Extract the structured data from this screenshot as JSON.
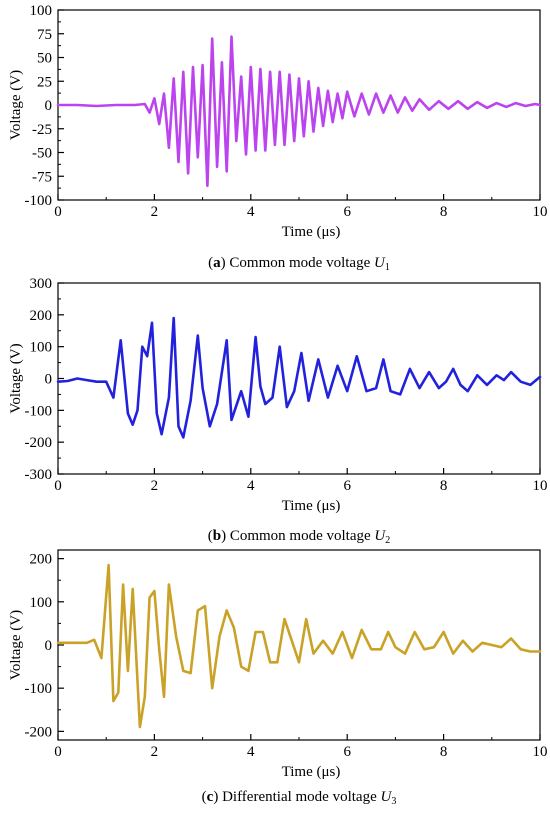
{
  "chart_data": [
    {
      "type": "line",
      "caption": {
        "label": "a",
        "text": " Common mode voltage ",
        "var": "U",
        "sub": "1"
      },
      "xlabel": "Time (μs)",
      "ylabel": "Voltage (V)",
      "xlim": [
        0,
        10
      ],
      "ylim": [
        -100,
        100
      ],
      "xticks": [
        "0",
        "2",
        "4",
        "6",
        "8",
        "10"
      ],
      "yticks": [
        "100",
        "75",
        "50",
        "25",
        "0",
        "-25",
        "-50",
        "-75",
        "-100"
      ],
      "colors": {
        "line": "#bb44ee",
        "accent": "#ee22cc"
      },
      "series": [
        {
          "x": [
            0,
            0.4,
            0.8,
            1.2,
            1.6,
            1.8,
            1.9,
            2.0,
            2.1,
            2.2,
            2.3,
            2.4,
            2.5,
            2.6,
            2.7,
            2.8,
            2.9,
            3.0,
            3.1,
            3.2,
            3.3,
            3.4,
            3.5,
            3.6,
            3.7,
            3.8,
            3.9,
            4.0,
            4.1,
            4.2,
            4.3,
            4.4,
            4.5,
            4.6,
            4.7,
            4.8,
            4.9,
            5.0,
            5.1,
            5.2,
            5.3,
            5.4,
            5.5,
            5.6,
            5.7,
            5.8,
            5.9,
            6.0,
            6.15,
            6.3,
            6.45,
            6.6,
            6.75,
            6.9,
            7.05,
            7.2,
            7.35,
            7.5,
            7.7,
            7.9,
            8.1,
            8.3,
            8.5,
            8.7,
            8.9,
            9.1,
            9.3,
            9.5,
            9.7,
            9.9,
            10.0
          ],
          "y": [
            0,
            0,
            -1,
            0,
            0,
            1,
            -8,
            7,
            -20,
            12,
            -45,
            28,
            -60,
            35,
            -72,
            40,
            -55,
            42,
            -85,
            70,
            -65,
            45,
            -70,
            72,
            -38,
            30,
            -52,
            40,
            -48,
            38,
            -48,
            35,
            -42,
            35,
            -42,
            32,
            -38,
            28,
            -33,
            25,
            -28,
            18,
            -22,
            15,
            -18,
            12,
            -14,
            14,
            -12,
            12,
            -10,
            12,
            -8,
            10,
            -8,
            8,
            -6,
            6,
            -5,
            4,
            -4,
            4,
            -4,
            3,
            -3,
            2,
            -2,
            2,
            -1,
            1,
            0
          ]
        }
      ]
    },
    {
      "type": "line",
      "caption": {
        "label": "b",
        "text": " Common mode voltage ",
        "var": "U",
        "sub": "2"
      },
      "xlabel": "Time (μs)",
      "ylabel": "Voltage (V)",
      "xlim": [
        0,
        10
      ],
      "ylim": [
        -300,
        300
      ],
      "xticks": [
        "0",
        "2",
        "4",
        "6",
        "8",
        "10"
      ],
      "yticks": [
        "300",
        "200",
        "100",
        "0",
        "-100",
        "-200",
        "-300"
      ],
      "colors": {
        "line": "#2222dd"
      },
      "series": [
        {
          "x": [
            0,
            0.2,
            0.4,
            0.6,
            0.8,
            1.0,
            1.15,
            1.3,
            1.45,
            1.55,
            1.65,
            1.75,
            1.85,
            1.95,
            2.05,
            2.15,
            2.3,
            2.4,
            2.5,
            2.6,
            2.75,
            2.9,
            3.0,
            3.15,
            3.3,
            3.5,
            3.6,
            3.8,
            3.95,
            4.1,
            4.2,
            4.3,
            4.45,
            4.6,
            4.75,
            4.9,
            5.05,
            5.2,
            5.4,
            5.6,
            5.8,
            6.0,
            6.2,
            6.4,
            6.6,
            6.75,
            6.9,
            7.1,
            7.3,
            7.5,
            7.7,
            7.9,
            8.05,
            8.2,
            8.35,
            8.5,
            8.7,
            8.9,
            9.1,
            9.25,
            9.4,
            9.6,
            9.8,
            10.0
          ],
          "y": [
            -10,
            -8,
            0,
            -5,
            -10,
            -10,
            -60,
            120,
            -110,
            -145,
            -100,
            100,
            70,
            175,
            -110,
            -175,
            -60,
            190,
            -150,
            -185,
            -70,
            135,
            -30,
            -150,
            -80,
            120,
            -130,
            -40,
            -120,
            130,
            -25,
            -80,
            -60,
            100,
            -90,
            -40,
            80,
            -70,
            60,
            -60,
            40,
            -40,
            70,
            -40,
            -30,
            60,
            -40,
            -50,
            30,
            -30,
            20,
            -30,
            -10,
            30,
            -20,
            -40,
            10,
            -20,
            10,
            -5,
            20,
            -10,
            -20,
            5
          ]
        }
      ]
    },
    {
      "type": "line",
      "caption": {
        "label": "c",
        "text": " Differential mode voltage ",
        "var": "U",
        "sub": "3"
      },
      "xlabel": "Time (μs)",
      "ylabel": "Voltage (V)",
      "xlim": [
        0,
        10
      ],
      "ylim": [
        -220,
        220
      ],
      "xticks": [
        "0",
        "2",
        "4",
        "6",
        "8",
        "10"
      ],
      "yticks": [
        "200",
        "100",
        "0",
        "-100",
        "-200"
      ],
      "colors": {
        "line": "#c9a227"
      },
      "series": [
        {
          "x": [
            0,
            0.3,
            0.6,
            0.75,
            0.9,
            1.05,
            1.15,
            1.25,
            1.35,
            1.45,
            1.55,
            1.7,
            1.8,
            1.9,
            2.0,
            2.1,
            2.2,
            2.3,
            2.45,
            2.6,
            2.75,
            2.9,
            3.05,
            3.2,
            3.35,
            3.5,
            3.65,
            3.8,
            3.95,
            4.1,
            4.25,
            4.4,
            4.55,
            4.7,
            4.85,
            5.0,
            5.15,
            5.3,
            5.5,
            5.7,
            5.9,
            6.1,
            6.3,
            6.5,
            6.7,
            6.85,
            7.0,
            7.2,
            7.4,
            7.6,
            7.8,
            8.0,
            8.2,
            8.4,
            8.6,
            8.8,
            9.0,
            9.2,
            9.4,
            9.6,
            9.8,
            10.0
          ],
          "y": [
            5,
            5,
            5,
            12,
            -30,
            185,
            -130,
            -110,
            140,
            -60,
            130,
            -190,
            -120,
            110,
            125,
            -10,
            -120,
            140,
            20,
            -60,
            -65,
            80,
            90,
            -100,
            20,
            80,
            40,
            -50,
            -60,
            30,
            30,
            -40,
            -40,
            60,
            10,
            -40,
            60,
            -20,
            10,
            -20,
            30,
            -30,
            35,
            -10,
            -10,
            30,
            -5,
            -20,
            30,
            -10,
            -5,
            30,
            -20,
            10,
            -15,
            5,
            0,
            -5,
            15,
            -10,
            -15,
            -15
          ]
        }
      ]
    }
  ]
}
